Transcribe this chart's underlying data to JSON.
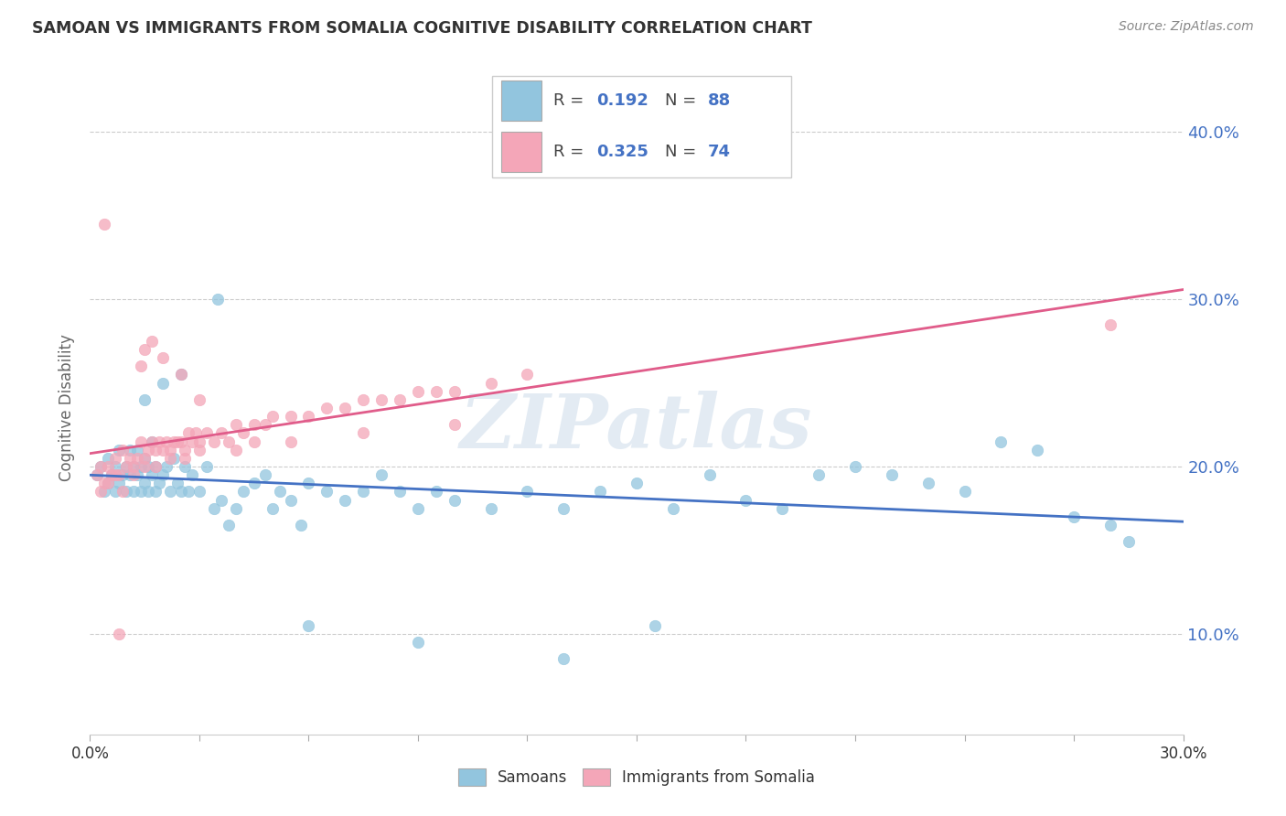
{
  "title": "SAMOAN VS IMMIGRANTS FROM SOMALIA COGNITIVE DISABILITY CORRELATION CHART",
  "source": "Source: ZipAtlas.com",
  "ylabel": "Cognitive Disability",
  "ylim": [
    0.04,
    0.43
  ],
  "xlim": [
    0.0,
    0.3
  ],
  "ytick_vals": [
    0.1,
    0.2,
    0.3,
    0.4
  ],
  "ytick_labels": [
    "10.0%",
    "20.0%",
    "30.0%",
    "40.0%"
  ],
  "blue_color": "#92c5de",
  "pink_color": "#f4a6b8",
  "blue_line_color": "#4472c4",
  "pink_line_color": "#e05c8a",
  "blue_num_color": "#4472c4",
  "watermark_text": "ZIPatlas",
  "legend_r1_val": "0.192",
  "legend_n1_val": "88",
  "legend_r2_val": "0.325",
  "legend_n2_val": "74",
  "samoans_x": [
    0.002,
    0.003,
    0.004,
    0.005,
    0.005,
    0.006,
    0.007,
    0.007,
    0.008,
    0.008,
    0.009,
    0.01,
    0.01,
    0.011,
    0.011,
    0.012,
    0.012,
    0.013,
    0.013,
    0.014,
    0.014,
    0.015,
    0.015,
    0.016,
    0.016,
    0.017,
    0.017,
    0.018,
    0.018,
    0.019,
    0.02,
    0.021,
    0.022,
    0.023,
    0.024,
    0.025,
    0.026,
    0.027,
    0.028,
    0.03,
    0.032,
    0.034,
    0.036,
    0.038,
    0.04,
    0.042,
    0.045,
    0.048,
    0.05,
    0.052,
    0.055,
    0.058,
    0.06,
    0.065,
    0.07,
    0.075,
    0.08,
    0.085,
    0.09,
    0.095,
    0.1,
    0.11,
    0.12,
    0.13,
    0.14,
    0.15,
    0.16,
    0.17,
    0.18,
    0.19,
    0.2,
    0.21,
    0.22,
    0.23,
    0.24,
    0.25,
    0.26,
    0.27,
    0.28,
    0.285,
    0.015,
    0.02,
    0.025,
    0.035,
    0.06,
    0.09,
    0.13,
    0.155
  ],
  "samoans_y": [
    0.195,
    0.2,
    0.185,
    0.19,
    0.205,
    0.195,
    0.185,
    0.2,
    0.19,
    0.21,
    0.195,
    0.185,
    0.2,
    0.195,
    0.21,
    0.185,
    0.2,
    0.195,
    0.21,
    0.185,
    0.2,
    0.19,
    0.205,
    0.185,
    0.2,
    0.195,
    0.215,
    0.185,
    0.2,
    0.19,
    0.195,
    0.2,
    0.185,
    0.205,
    0.19,
    0.185,
    0.2,
    0.185,
    0.195,
    0.185,
    0.2,
    0.175,
    0.18,
    0.165,
    0.175,
    0.185,
    0.19,
    0.195,
    0.175,
    0.185,
    0.18,
    0.165,
    0.19,
    0.185,
    0.18,
    0.185,
    0.195,
    0.185,
    0.175,
    0.185,
    0.18,
    0.175,
    0.185,
    0.175,
    0.185,
    0.19,
    0.175,
    0.195,
    0.18,
    0.175,
    0.195,
    0.2,
    0.195,
    0.19,
    0.185,
    0.215,
    0.21,
    0.17,
    0.165,
    0.155,
    0.24,
    0.25,
    0.255,
    0.3,
    0.105,
    0.095,
    0.085,
    0.105
  ],
  "somalia_x": [
    0.002,
    0.003,
    0.004,
    0.005,
    0.006,
    0.007,
    0.008,
    0.009,
    0.01,
    0.011,
    0.012,
    0.013,
    0.014,
    0.015,
    0.016,
    0.017,
    0.018,
    0.019,
    0.02,
    0.021,
    0.022,
    0.023,
    0.024,
    0.025,
    0.026,
    0.027,
    0.028,
    0.029,
    0.03,
    0.032,
    0.034,
    0.036,
    0.038,
    0.04,
    0.042,
    0.045,
    0.048,
    0.05,
    0.055,
    0.06,
    0.065,
    0.07,
    0.075,
    0.08,
    0.085,
    0.09,
    0.095,
    0.1,
    0.11,
    0.12,
    0.003,
    0.005,
    0.007,
    0.009,
    0.012,
    0.015,
    0.018,
    0.022,
    0.026,
    0.03,
    0.04,
    0.055,
    0.075,
    0.1,
    0.014,
    0.017,
    0.02,
    0.025,
    0.03,
    0.045,
    0.004,
    0.28,
    0.008,
    0.015
  ],
  "somalia_y": [
    0.195,
    0.2,
    0.19,
    0.2,
    0.195,
    0.205,
    0.195,
    0.21,
    0.2,
    0.205,
    0.2,
    0.205,
    0.215,
    0.205,
    0.21,
    0.215,
    0.21,
    0.215,
    0.21,
    0.215,
    0.21,
    0.215,
    0.215,
    0.215,
    0.21,
    0.22,
    0.215,
    0.22,
    0.215,
    0.22,
    0.215,
    0.22,
    0.215,
    0.225,
    0.22,
    0.225,
    0.225,
    0.23,
    0.23,
    0.23,
    0.235,
    0.235,
    0.24,
    0.24,
    0.24,
    0.245,
    0.245,
    0.245,
    0.25,
    0.255,
    0.185,
    0.19,
    0.195,
    0.185,
    0.195,
    0.2,
    0.2,
    0.205,
    0.205,
    0.21,
    0.21,
    0.215,
    0.22,
    0.225,
    0.26,
    0.275,
    0.265,
    0.255,
    0.24,
    0.215,
    0.345,
    0.285,
    0.1,
    0.27
  ]
}
